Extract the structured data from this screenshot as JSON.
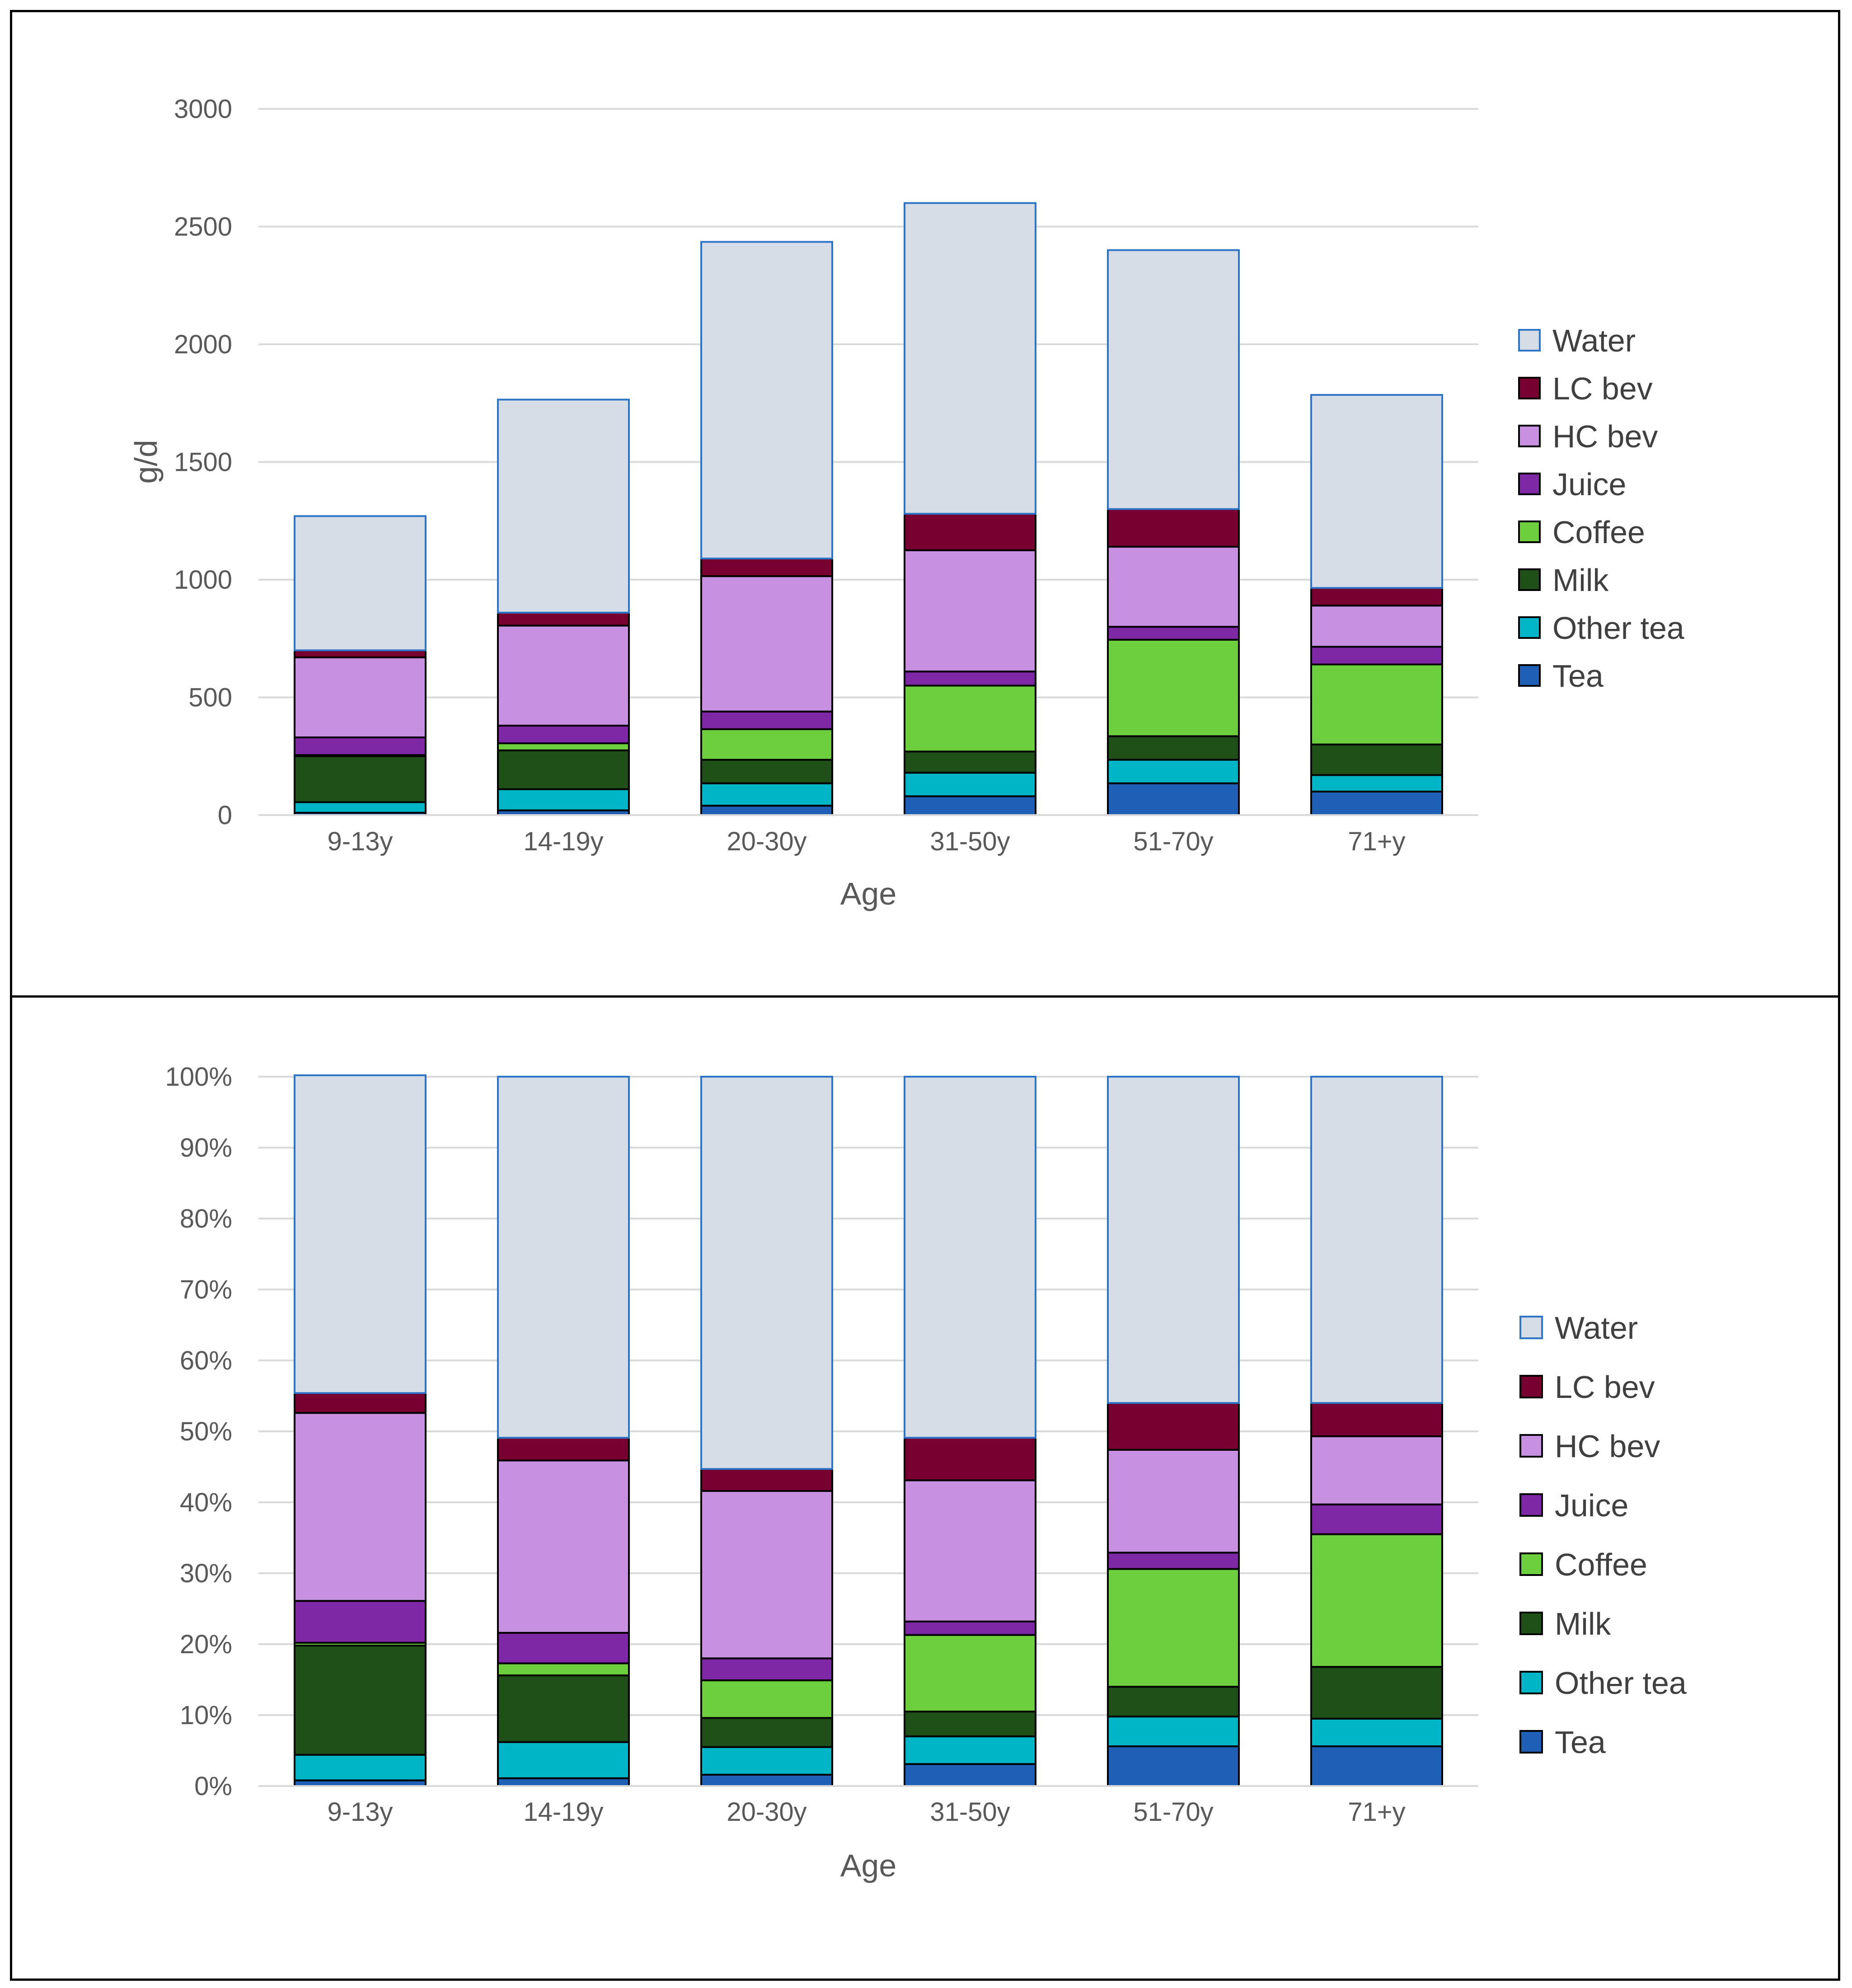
{
  "colors": {
    "Tea": "#1f5fb5",
    "Other tea": "#00b5c5",
    "Milk": "#1e5018",
    "Coffee": "#6dcf3d",
    "Juice": "#7f28a6",
    "HC bev": "#c890e0",
    "LC bev": "#780030",
    "Water": "#d6dde6"
  },
  "chart_data": [
    {
      "type": "bar",
      "stacked": true,
      "title": "",
      "xlabel": "Age",
      "ylabel": "g/d",
      "ylim": [
        0,
        3000
      ],
      "yticks": [
        "0",
        "500",
        "1000",
        "1500",
        "2000",
        "2500",
        "3000"
      ],
      "grid": true,
      "legend_position": "right",
      "categories": [
        "9-13y",
        "14-19y",
        "20-30y",
        "31-50y",
        "51-70y",
        "71+y"
      ],
      "series": [
        {
          "name": "Tea",
          "values": [
            10,
            20,
            40,
            80,
            135,
            100
          ]
        },
        {
          "name": "Other tea",
          "values": [
            45,
            90,
            95,
            100,
            100,
            70
          ]
        },
        {
          "name": "Milk",
          "values": [
            195,
            165,
            100,
            90,
            100,
            130
          ]
        },
        {
          "name": "Coffee",
          "values": [
            5,
            30,
            130,
            280,
            410,
            340
          ]
        },
        {
          "name": "Juice",
          "values": [
            75,
            75,
            75,
            60,
            55,
            75
          ]
        },
        {
          "name": "HC bev",
          "values": [
            340,
            425,
            575,
            515,
            340,
            175
          ]
        },
        {
          "name": "LC bev",
          "values": [
            30,
            55,
            75,
            155,
            160,
            75
          ]
        },
        {
          "name": "Water",
          "values": [
            570,
            905,
            1345,
            1320,
            1100,
            820
          ]
        }
      ]
    },
    {
      "type": "bar",
      "stacked": true,
      "percent": true,
      "title": "",
      "xlabel": "Age",
      "ylabel": "",
      "ylim": [
        0,
        100
      ],
      "yticks": [
        "0%",
        "10%",
        "20%",
        "30%",
        "40%",
        "50%",
        "60%",
        "70%",
        "80%",
        "90%",
        "100%"
      ],
      "grid": true,
      "legend_position": "right",
      "categories": [
        "9-13y",
        "14-19y",
        "20-30y",
        "31-50y",
        "51-70y",
        "71+y"
      ],
      "series": [
        {
          "name": "Tea",
          "values": [
            0.8,
            1.1,
            1.6,
            3.1,
            5.6,
            5.6
          ]
        },
        {
          "name": "Other tea",
          "values": [
            3.6,
            5.1,
            3.9,
            3.9,
            4.2,
            3.9
          ]
        },
        {
          "name": "Milk",
          "values": [
            15.4,
            9.4,
            4.1,
            3.5,
            4.2,
            7.3
          ]
        },
        {
          "name": "Coffee",
          "values": [
            0.4,
            1.7,
            5.3,
            10.8,
            16.6,
            18.7
          ]
        },
        {
          "name": "Juice",
          "values": [
            5.9,
            4.3,
            3.1,
            1.9,
            2.3,
            4.2
          ]
        },
        {
          "name": "HC bev",
          "values": [
            26.5,
            24.3,
            23.6,
            19.9,
            14.5,
            9.6
          ]
        },
        {
          "name": "LC bev",
          "values": [
            2.8,
            3.2,
            3.1,
            6.0,
            6.6,
            4.7
          ]
        },
        {
          "name": "Water",
          "values": [
            44.8,
            50.9,
            55.3,
            50.9,
            46.0,
            46.0
          ]
        }
      ]
    }
  ]
}
